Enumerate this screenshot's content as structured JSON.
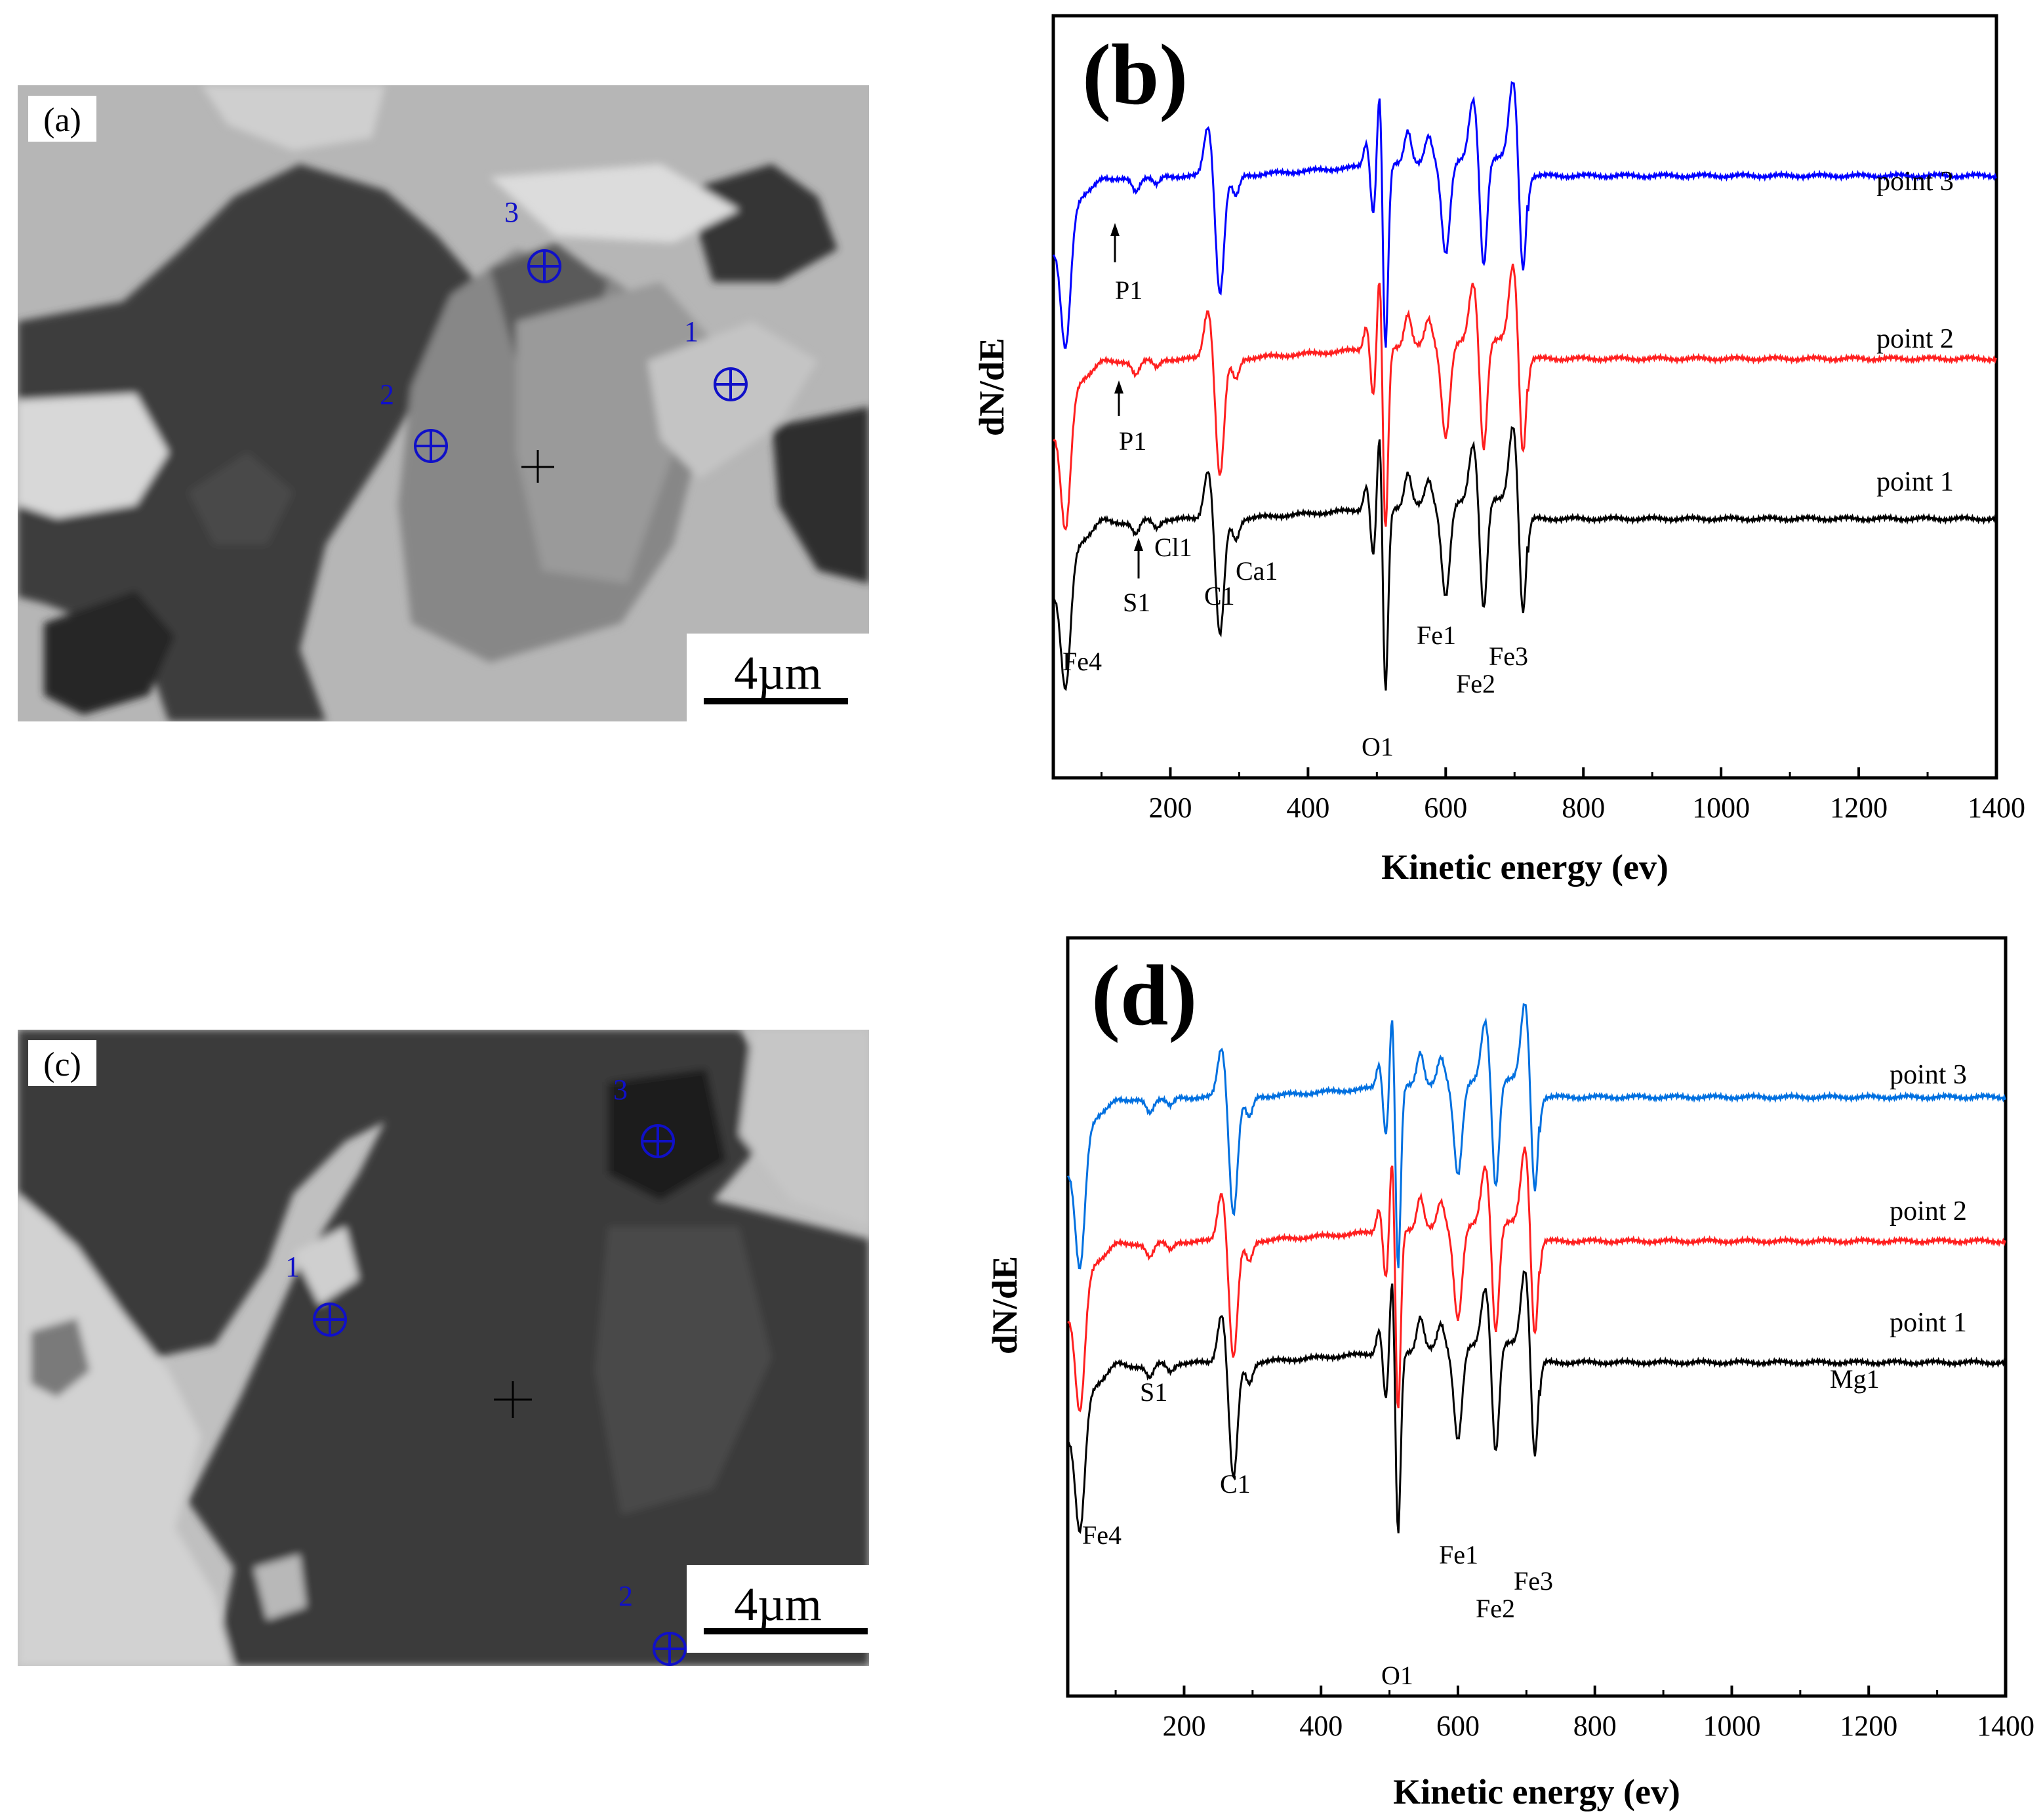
{
  "sem_a": {
    "label": "(a)",
    "scale_bar": "4µm",
    "markers": [
      {
        "label": "3"
      },
      {
        "label": "1"
      },
      {
        "label": "2"
      }
    ]
  },
  "sem_c": {
    "label": "(c)",
    "scale_bar": "4µm",
    "markers": [
      {
        "label": "3"
      },
      {
        "label": "1"
      },
      {
        "label": "2"
      }
    ]
  },
  "chart_data": [
    {
      "type": "line",
      "panel_label": "(b)",
      "xlabel": "Kinetic energy (ev)",
      "ylabel": "dN/dE",
      "xlim": [
        30,
        1400
      ],
      "xticks": [
        200,
        400,
        600,
        800,
        1000,
        1200,
        1400
      ],
      "series_colors": [
        "#0000ff",
        "#ff2020",
        "#000000"
      ],
      "series": [
        {
          "name": "point 3",
          "baseline": 0.79
        },
        {
          "name": "point 2",
          "baseline": 0.55
        },
        {
          "name": "point 1",
          "baseline": 0.34
        }
      ],
      "peak_labels": [
        "P1",
        "P1",
        "Cl1",
        "S1",
        "C1",
        "Ca1",
        "Fe4",
        "Fe1",
        "Fe2",
        "Fe3",
        "O1"
      ]
    },
    {
      "type": "line",
      "panel_label": "(d)",
      "xlabel": "Kinetic energy (ev)",
      "ylabel": "dN/dE",
      "xlim": [
        30,
        1400
      ],
      "xticks": [
        200,
        400,
        600,
        800,
        1000,
        1200,
        1400
      ],
      "series_colors": [
        "#0070e0",
        "#ff2020",
        "#000000"
      ],
      "series": [
        {
          "name": "point 3",
          "baseline": 0.79
        },
        {
          "name": "point 2",
          "baseline": 0.6
        },
        {
          "name": "point 1",
          "baseline": 0.44
        }
      ],
      "peak_labels": [
        "S1",
        "C1",
        "Fe4",
        "Fe1",
        "Fe2",
        "Fe3",
        "O1",
        "Mg1"
      ]
    }
  ]
}
